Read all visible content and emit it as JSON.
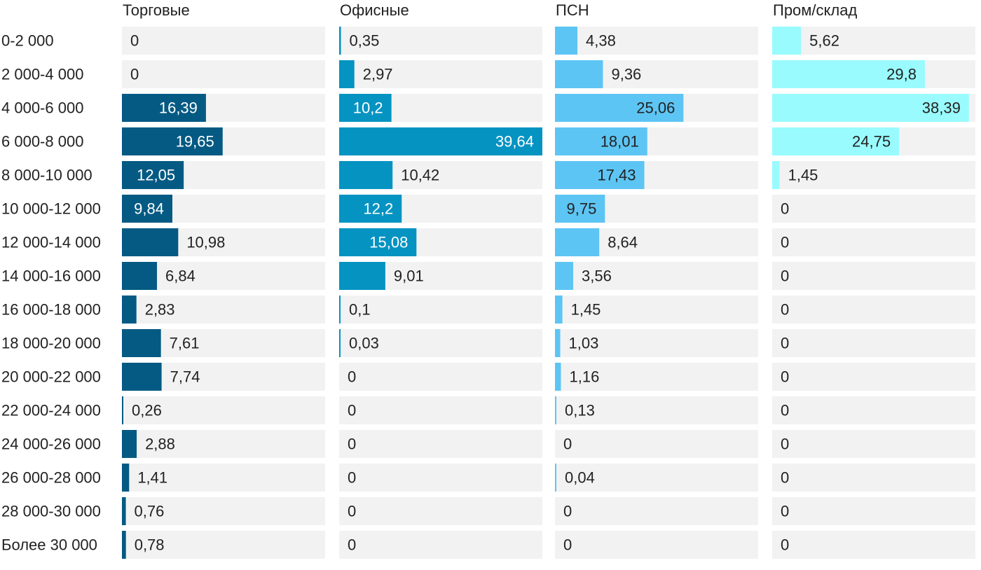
{
  "chart_data": {
    "type": "bar",
    "orientation": "horizontal",
    "layout": "small-multiples",
    "categories": [
      "0-2 000",
      "2 000-4 000",
      "4 000-6 000",
      "6 000-8 000",
      "8 000-10 000",
      "10 000-12 000",
      "12 000-14 000",
      "14 000-16 000",
      "16 000-18 000",
      "18 000-20 000",
      "20 000-22 000",
      "22 000-24 000",
      "24 000-26 000",
      "26 000-28 000",
      "28 000-30 000",
      "Более 30 000"
    ],
    "series": [
      {
        "name": "Торговые",
        "color": "#045a83",
        "values": [
          0,
          0,
          16.39,
          19.65,
          12.05,
          9.84,
          10.98,
          6.84,
          2.83,
          7.61,
          7.74,
          0.26,
          2.88,
          1.41,
          0.76,
          0.78
        ],
        "labels": [
          "0",
          "0",
          "16,39",
          "19,65",
          "12,05",
          "9,84",
          "10,98",
          "6,84",
          "2,83",
          "7,61",
          "7,74",
          "0,26",
          "2,88",
          "1,41",
          "0,76",
          "0,78"
        ]
      },
      {
        "name": "Офисные",
        "color": "#0593c2",
        "values": [
          0.35,
          2.97,
          10.2,
          39.64,
          10.42,
          12.2,
          15.08,
          9.01,
          0.1,
          0.03,
          0,
          0,
          0,
          0,
          0,
          0
        ],
        "labels": [
          "0,35",
          "2,97",
          "10,2",
          "39,64",
          "10,42",
          "12,2",
          "15,08",
          "9,01",
          "0,1",
          "0,03",
          "0",
          "0",
          "0",
          "0",
          "0",
          "0"
        ]
      },
      {
        "name": "ПСН",
        "color": "#5dc5f4",
        "values": [
          4.38,
          9.36,
          25.06,
          18.01,
          17.43,
          9.75,
          8.64,
          3.56,
          1.45,
          1.03,
          1.16,
          0.13,
          0,
          0.04,
          0,
          0
        ],
        "labels": [
          "4,38",
          "9,36",
          "25,06",
          "18,01",
          "17,43",
          "9,75",
          "8,64",
          "3,56",
          "1,45",
          "1,03",
          "1,16",
          "0,13",
          "0",
          "0,04",
          "0",
          "0"
        ]
      },
      {
        "name": "Пром/склад",
        "color": "#99fbfd",
        "values": [
          5.62,
          29.8,
          38.39,
          24.75,
          1.45,
          0,
          0,
          0,
          0,
          0,
          0,
          0,
          0,
          0,
          0,
          0
        ],
        "labels": [
          "5,62",
          "29,8",
          "38,39",
          "24,75",
          "1,45",
          "0",
          "0",
          "0",
          "0",
          "0",
          "0",
          "0",
          "0",
          "0",
          "0",
          "0"
        ]
      }
    ],
    "title": "",
    "xlabel": "",
    "ylabel": "",
    "grid": false,
    "legend": "none"
  }
}
